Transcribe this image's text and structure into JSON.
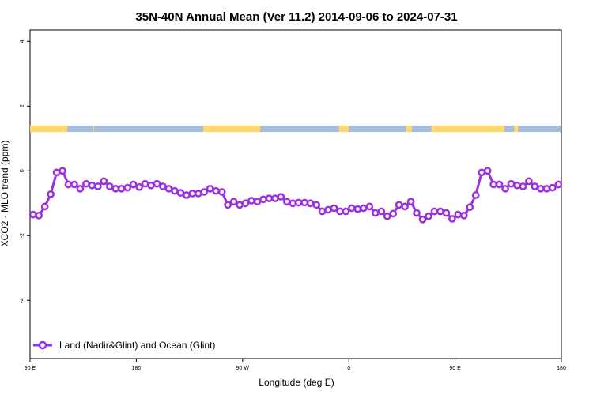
{
  "chart_data": {
    "type": "line",
    "title": "35N-40N Annual Mean (Ver 11.2)   2014-09-06 to 2024-07-31",
    "xlabel": "Longitude (deg E)",
    "ylabel": "XCO2 - MLO trend (ppm)",
    "xlim": [
      0,
      270
    ],
    "ylim": [
      -5.8,
      4.35
    ],
    "x_ticks": [
      {
        "value": 0,
        "label": "90 E"
      },
      {
        "value": 54,
        "label": "180"
      },
      {
        "value": 108,
        "label": "90 W"
      },
      {
        "value": 162,
        "label": "0"
      },
      {
        "value": 216,
        "label": "90 E"
      },
      {
        "value": 270,
        "label": "180"
      }
    ],
    "y_ticks": [
      {
        "value": 4,
        "label": "4"
      },
      {
        "value": 2,
        "label": "2"
      },
      {
        "value": 0,
        "label": "0"
      },
      {
        "value": -2,
        "label": "-2"
      },
      {
        "value": -4,
        "label": "-4"
      }
    ],
    "legend": {
      "label": "Land (Nadir&Glint) and Ocean (Glint)",
      "position": "bottom-left"
    },
    "colors": {
      "series": "#9b30e0",
      "land": "#ffd870",
      "ocean": "#a6bddb"
    },
    "land_ocean_band": {
      "y_range": [
        1.2,
        1.4
      ],
      "land_segments": [
        [
          0,
          19
        ],
        [
          32,
          32.5
        ],
        [
          88,
          117
        ],
        [
          157,
          162
        ],
        [
          191,
          194
        ],
        [
          204,
          241
        ],
        [
          246,
          248
        ]
      ]
    },
    "series": [
      {
        "name": "Land (Nadir&Glint) and Ocean (Glint)",
        "x": [
          1.5,
          4.5,
          7.5,
          10.5,
          13.5,
          16.5,
          19.5,
          22.5,
          25.5,
          28.5,
          31.5,
          34.5,
          37.5,
          40.5,
          43.5,
          46.5,
          49.5,
          52.5,
          55.5,
          58.5,
          61.5,
          64.5,
          67.5,
          70.5,
          73.5,
          76.5,
          79.5,
          82.5,
          85.5,
          88.5,
          91.5,
          94.5,
          97.5,
          100.5,
          103.5,
          106.5,
          109.5,
          112.5,
          115.5,
          118.5,
          121.5,
          124.5,
          127.5,
          130.5,
          133.5,
          136.5,
          139.5,
          142.5,
          145.5,
          148.5,
          151.5,
          154.5,
          157.5,
          160.5,
          163.5,
          166.5,
          169.5,
          172.5,
          175.5,
          178.5,
          181.5,
          184.5,
          187.5,
          190.5,
          193.5,
          196.5,
          199.5,
          202.5,
          205.5,
          208.5,
          211.5,
          214.5,
          217.5,
          220.5,
          223.5,
          226.5,
          229.5,
          232.5,
          235.5,
          238.5,
          241.5,
          244.5,
          247.5,
          250.5,
          253.5,
          256.5,
          259.5,
          262.5,
          265.5,
          268.5
        ],
        "y": [
          -1.35,
          -1.38,
          -1.1,
          -0.72,
          -0.05,
          0.0,
          -0.42,
          -0.42,
          -0.55,
          -0.4,
          -0.45,
          -0.48,
          -0.32,
          -0.48,
          -0.55,
          -0.55,
          -0.52,
          -0.42,
          -0.5,
          -0.4,
          -0.45,
          -0.4,
          -0.48,
          -0.55,
          -0.62,
          -0.68,
          -0.75,
          -0.7,
          -0.7,
          -0.65,
          -0.55,
          -0.62,
          -0.65,
          -1.05,
          -0.95,
          -1.05,
          -1.0,
          -0.92,
          -0.95,
          -0.88,
          -0.85,
          -0.85,
          -0.8,
          -0.95,
          -1.0,
          -0.98,
          -0.98,
          -1.0,
          -1.05,
          -1.25,
          -1.2,
          -1.15,
          -1.25,
          -1.25,
          -1.15,
          -1.18,
          -1.15,
          -1.1,
          -1.3,
          -1.25,
          -1.4,
          -1.32,
          -1.05,
          -1.1,
          -0.95,
          -1.3,
          -1.5,
          -1.4,
          -1.25,
          -1.25,
          -1.3,
          -1.48,
          -1.35,
          -1.38,
          -1.12,
          -0.75,
          -0.05,
          0.0,
          -0.42,
          -0.42,
          -0.55,
          -0.4,
          -0.45,
          -0.48,
          -0.32,
          -0.48,
          -0.55,
          -0.55,
          -0.52,
          -0.42
        ]
      }
    ]
  }
}
